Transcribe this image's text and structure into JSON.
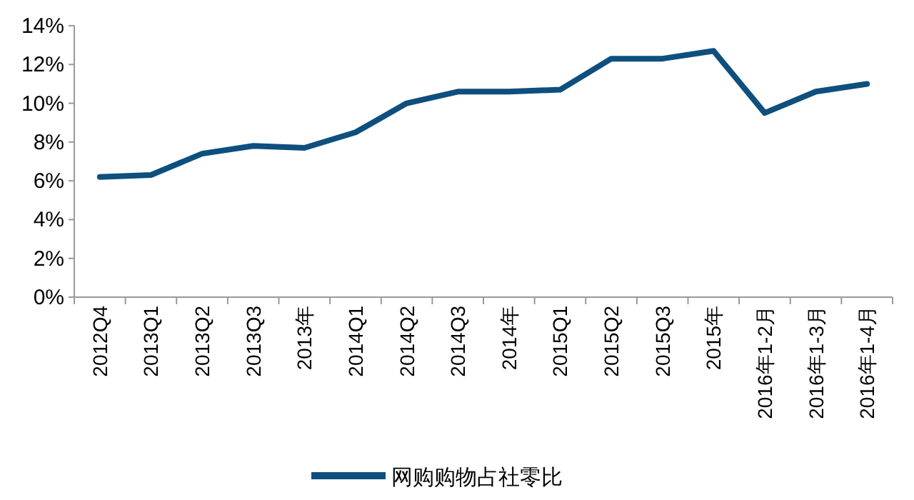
{
  "chart_data": {
    "type": "line",
    "categories": [
      "2012Q4",
      "2013Q1",
      "2013Q2",
      "2013Q3",
      "2013年",
      "2014Q1",
      "2014Q2",
      "2014Q3",
      "2014年",
      "2015Q1",
      "2015Q2",
      "2015Q3",
      "2015年",
      "2016年1-2月",
      "2016年1-3月",
      "2016年1-4月"
    ],
    "series": [
      {
        "name": "网购购物占社零比",
        "color": "#0e4f7e",
        "values": [
          6.2,
          6.3,
          7.4,
          7.8,
          7.7,
          8.5,
          10.0,
          10.6,
          10.6,
          10.7,
          12.3,
          12.3,
          12.7,
          9.5,
          10.6,
          11.0
        ]
      }
    ],
    "ylim": [
      0,
      14
    ],
    "yticks": [
      {
        "value": 0,
        "label": "0%"
      },
      {
        "value": 2,
        "label": "2%"
      },
      {
        "value": 4,
        "label": "4%"
      },
      {
        "value": 6,
        "label": "6%"
      },
      {
        "value": 8,
        "label": "8%"
      },
      {
        "value": 10,
        "label": "10%"
      },
      {
        "value": 12,
        "label": "12%"
      },
      {
        "value": 14,
        "label": "14%"
      }
    ],
    "grid": false,
    "legend": "bottom",
    "marker": "none",
    "line_style": "solid"
  }
}
